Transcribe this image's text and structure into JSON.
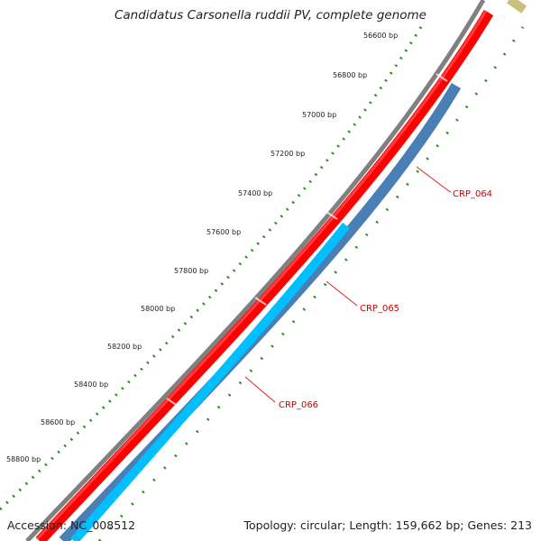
{
  "title": "Candidatus Carsonella ruddii PV, complete genome",
  "accession": "Accession: NC_008512",
  "summary": "Topology: circular; Length: 159,662 bp; Genes: 213",
  "tick_labels": [
    "56600 bp",
    "56800 bp",
    "57000 bp",
    "57200 bp",
    "57400 bp",
    "57600 bp",
    "57800 bp",
    "58000 bp",
    "58200 bp",
    "58400 bp",
    "58600 bp",
    "58800 bp"
  ],
  "gene_labels": [
    "CRP_064",
    "CRP_065",
    "CRP_066"
  ],
  "colors": {
    "backbone": "#7a7a7a",
    "forward_gene": "#ff0000",
    "reverse_gene_1": "#4a7fb5",
    "reverse_gene_2": "#00bfff",
    "tick": "#2e8b22",
    "label_line": "#dd2222",
    "other_feature": "#c8c080"
  }
}
